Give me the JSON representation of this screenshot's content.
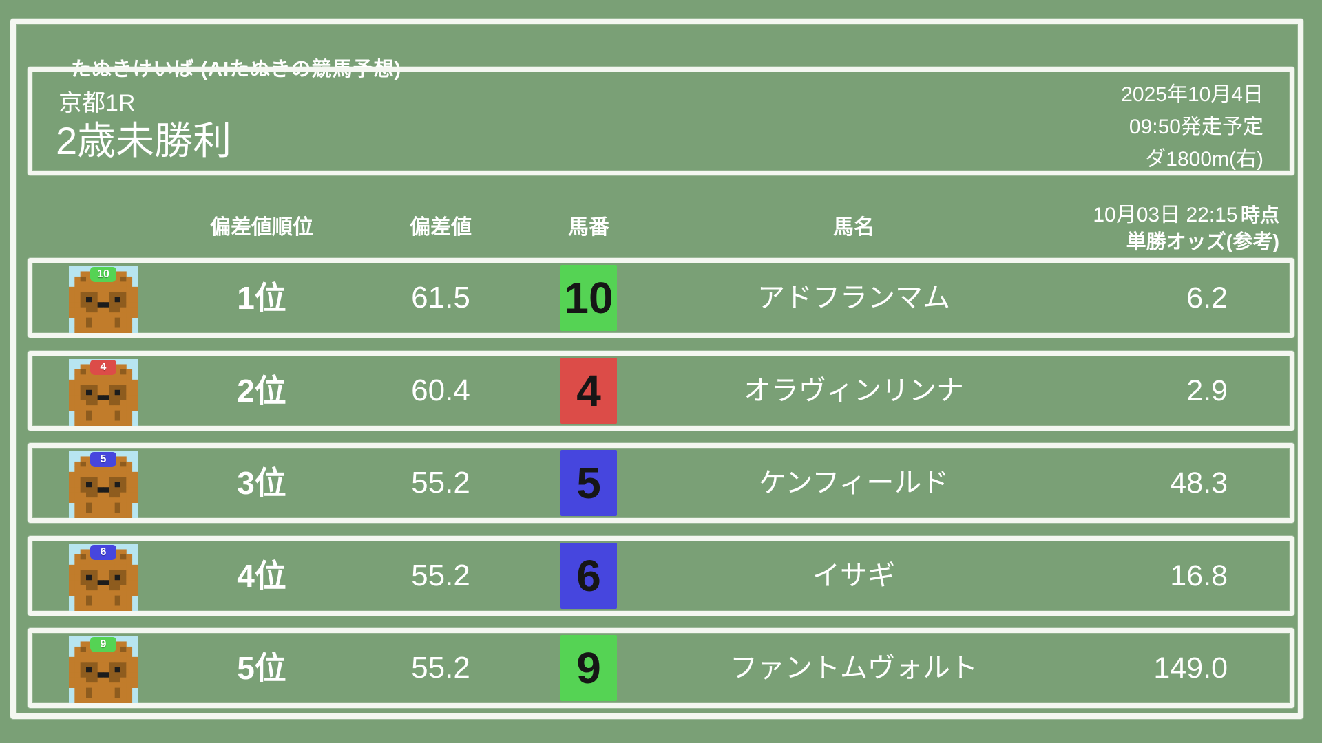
{
  "app": {
    "title": "たぬきけいば (AIたぬきの競馬予想)"
  },
  "race": {
    "track_race": "京都1R",
    "name": "2歳未勝利",
    "date": "2025年10月4日",
    "start_time": "09:50発走予定",
    "course": "ダ1800m(右)"
  },
  "table": {
    "headers": {
      "rank": "偏差値順位",
      "value": "偏差値",
      "number": "馬番",
      "name": "馬名",
      "odds_time": "10月03日 22:15",
      "odds_time_suffix": "時点",
      "odds_label": "単勝オッズ(参考)"
    },
    "rows": [
      {
        "rank": "1位",
        "value": "61.5",
        "number": "10",
        "number_color": "#55d354",
        "name": "アドフランマム",
        "odds": "6.2"
      },
      {
        "rank": "2位",
        "value": "60.4",
        "number": "4",
        "number_color": "#dc4c48",
        "name": "オラヴィンリンナ",
        "odds": "2.9"
      },
      {
        "rank": "3位",
        "value": "55.2",
        "number": "5",
        "number_color": "#4646de",
        "name": "ケンフィールド",
        "odds": "48.3"
      },
      {
        "rank": "4位",
        "value": "55.2",
        "number": "6",
        "number_color": "#4646de",
        "name": "イサギ",
        "odds": "16.8"
      },
      {
        "rank": "5位",
        "value": "55.2",
        "number": "9",
        "number_color": "#55d354",
        "name": "ファントムヴォルト",
        "odds": "149.0"
      }
    ]
  },
  "colors": {
    "background": "#7aa076",
    "chalk": "#f4f7f1",
    "text": "#ffffff",
    "badge_text": "#161616",
    "avatar_sky": "#b7e5f0",
    "tanuki_body": "#c17c2b",
    "tanuki_dark": "#8e5c1e",
    "tanuki_black": "#1c1c1c",
    "cap_text": "#ffffff"
  },
  "icons": {
    "avatar": "tanuki-avatar"
  }
}
